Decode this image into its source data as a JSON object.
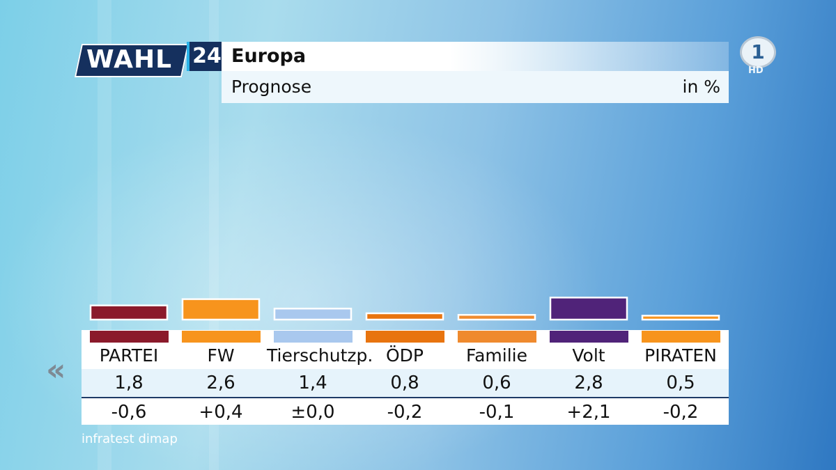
{
  "header": {
    "logo_word": "WAHL",
    "logo_number": "24",
    "title": "Europa",
    "subtitle": "Prognose",
    "unit": "in %"
  },
  "broadcaster": {
    "logo": "ard-1-logo",
    "hd_label": "HD"
  },
  "source": "infratest dimap",
  "navigation": {
    "back_icon": "double-chevron-left-icon"
  },
  "colors": {
    "PARTEI": "#8b1a2b",
    "FW": "#f7941d",
    "Tierschutzp.": "#a9c8ee",
    "ÖDP": "#e8740f",
    "Familie": "#ef8a2e",
    "Volt": "#502379",
    "PIRATEN": "#f7941d"
  },
  "chart_data": {
    "type": "bar",
    "categories": [
      "PARTEI",
      "FW",
      "Tierschutzp.",
      "ÖDP",
      "Familie",
      "Volt",
      "PIRATEN"
    ],
    "values": [
      1.8,
      2.6,
      1.4,
      0.8,
      0.6,
      2.8,
      0.5
    ],
    "value_labels": [
      "1,8",
      "2,6",
      "1,4",
      "0,8",
      "0,6",
      "2,8",
      "0,5"
    ],
    "changes": [
      -0.6,
      0.4,
      0.0,
      -0.2,
      -0.1,
      2.1,
      -0.2
    ],
    "change_labels": [
      "-0,6",
      "+0,4",
      "±0,0",
      "-0,2",
      "-0,1",
      "+2,1",
      "-0,2"
    ],
    "title": "Europa",
    "subtitle": "Prognose",
    "unit": "in %",
    "grid": false,
    "legend": "none"
  }
}
